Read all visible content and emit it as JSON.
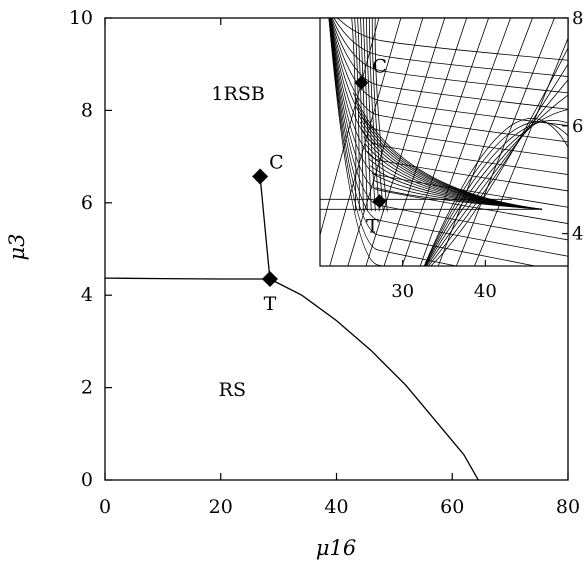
{
  "chart_data": [
    {
      "type": "line",
      "title": "",
      "xlabel": "μ16",
      "ylabel": "μ3",
      "xlim": [
        0,
        80
      ],
      "ylim": [
        0,
        10
      ],
      "xticks": [
        "0",
        "20",
        "40",
        "60",
        "80"
      ],
      "yticks": [
        "0",
        "2",
        "4",
        "6",
        "8",
        "10"
      ],
      "grid": false,
      "region_labels": [
        {
          "text": "1RSB",
          "x": 23,
          "y": 8.35
        },
        {
          "text": "RS",
          "x": 22,
          "y": 1.95
        }
      ],
      "series": [
        {
          "points": [
            [
              0,
              4.37
            ],
            [
              10,
              4.36
            ],
            [
              20,
              4.35
            ],
            [
              28.5,
              4.35
            ]
          ]
        },
        {
          "points": [
            [
              28.5,
              4.35
            ],
            [
              34,
              4.0
            ],
            [
              40,
              3.45
            ],
            [
              46,
              2.8
            ],
            [
              52,
              2.05
            ],
            [
              58,
              1.15
            ],
            [
              62,
              0.55
            ],
            [
              64.5,
              0.0
            ]
          ]
        },
        {
          "points": [
            [
              26.8,
              6.57
            ],
            [
              28.5,
              4.35
            ]
          ]
        }
      ],
      "points": [
        {
          "label": "C",
          "x": 26.8,
          "y": 6.57
        },
        {
          "label": "T",
          "x": 28.5,
          "y": 4.35
        }
      ]
    },
    {
      "type": "line",
      "title": "",
      "xlim": [
        20,
        50
      ],
      "ylim": [
        3.4,
        8.0
      ],
      "xticks": [
        "30",
        "40"
      ],
      "yticks": [
        "4",
        "6",
        "8"
      ],
      "points": [
        {
          "label": "C",
          "x": 25.0,
          "y": 6.8
        },
        {
          "label": "T",
          "x": 27.2,
          "y": 4.6
        }
      ]
    }
  ]
}
